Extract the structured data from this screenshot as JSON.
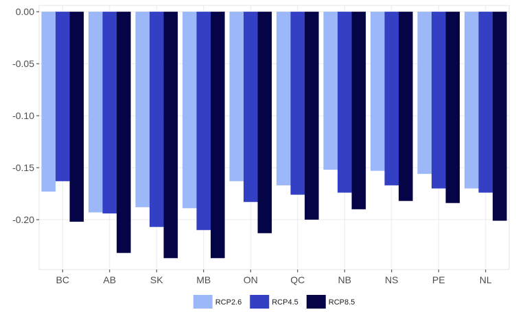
{
  "chart_data": {
    "type": "bar",
    "title": "",
    "xlabel": "",
    "ylabel": "",
    "categories": [
      "BC",
      "AB",
      "SK",
      "MB",
      "ON",
      "QC",
      "NB",
      "NS",
      "PE",
      "NL"
    ],
    "series": [
      {
        "name": "RCP2.6",
        "color": "#9db8f8",
        "values": [
          -0.173,
          -0.193,
          -0.188,
          -0.189,
          -0.163,
          -0.167,
          -0.152,
          -0.153,
          -0.156,
          -0.17
        ]
      },
      {
        "name": "RCP4.5",
        "color": "#3340c4",
        "values": [
          -0.163,
          -0.194,
          -0.207,
          -0.21,
          -0.183,
          -0.176,
          -0.174,
          -0.167,
          -0.17,
          -0.174
        ]
      },
      {
        "name": "RCP8.5",
        "color": "#050447",
        "values": [
          -0.202,
          -0.232,
          -0.237,
          -0.237,
          -0.213,
          -0.2,
          -0.19,
          -0.182,
          -0.184,
          -0.201
        ]
      }
    ],
    "yticks": [
      "0.00",
      "-0.05",
      "-0.10",
      "-0.15",
      "-0.20"
    ],
    "ytick_values": [
      0.0,
      -0.05,
      -0.1,
      -0.15,
      -0.2
    ],
    "ylim": [
      -0.248,
      0.006
    ],
    "grid": true,
    "legend_position": "bottom"
  }
}
